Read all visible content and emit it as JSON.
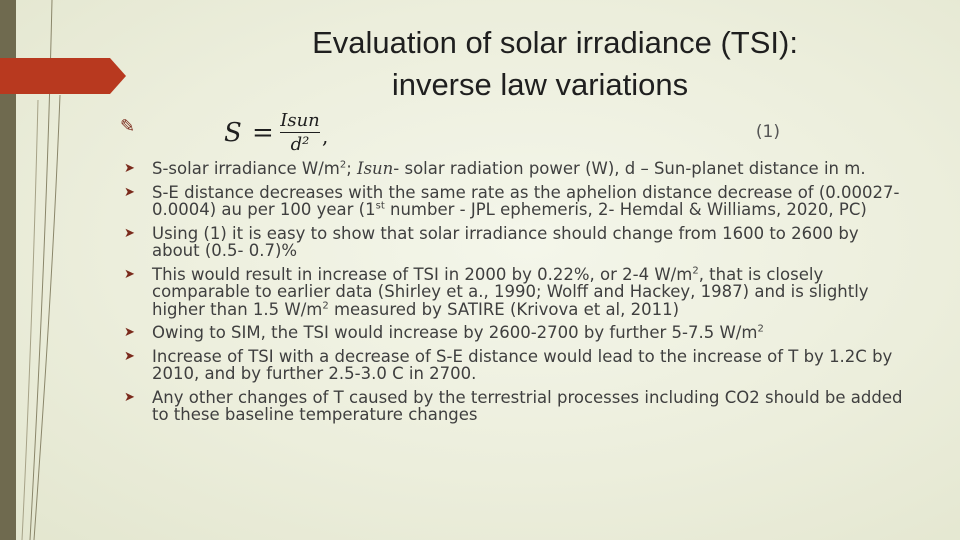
{
  "title": {
    "line1": "Evaluation of solar irradiance (TSI):",
    "line2": "inverse law variations"
  },
  "formula": {
    "lhs": "S",
    "eq": "=",
    "numerator": "Isun",
    "denominator": "d²",
    "comma": ",",
    "number": "(1)"
  },
  "bullets": [
    {
      "a": "S-solar irradiance W/m",
      "sup": "2",
      "b": "; ",
      "it": "Isun",
      "c": "- solar radiation power (W), d – Sun-planet distance in m."
    },
    {
      "a": "S-E distance decreases with the same rate as the aphelion distance decrease of (0.00027-0.0004) au per 100 year (1",
      "sup": "st",
      "b": " number - JPL ephemeris, 2- Hemdal & Williams, 2020, PC)"
    },
    {
      "a": "Using (1) it is easy to show that solar irradiance should change from 1600 to 2600 by about (0.5- 0.7)%"
    },
    {
      "a": "This would  result in increase of TSI in 2000 by 0.22%, or 2-4 W/m",
      "sup": "2",
      "b": ", that is closely comparable to earlier data (Shirley et a., 1990; Wolff and Hackey, 1987) and is slightly higher than 1.5 W/m",
      "sup2": "2",
      "c": " measured by SATIRE (Krivova et al, 2011)"
    },
    {
      "a": "Owing to SIM, the TSI would increase by 2600-2700 by further 5-7.5 W/m",
      "sup": "2"
    },
    {
      "a": "Increase of TSI with a decrease of S-E distance would lead to the increase of T by 1.2C by 2010, and by further 2.5-3.0 C in 2700."
    },
    {
      "a": "Any other changes of T caused by the terrestrial processes including CO2 should be added to these baseline temperature changes"
    }
  ],
  "colors": {
    "background": "#ecefdd",
    "left_bar": "#6f6a4f",
    "accent": "#b8391f"
  },
  "icons": {
    "first_bullet": "pencil-icon",
    "bullet": "arrow-bullet-icon"
  }
}
